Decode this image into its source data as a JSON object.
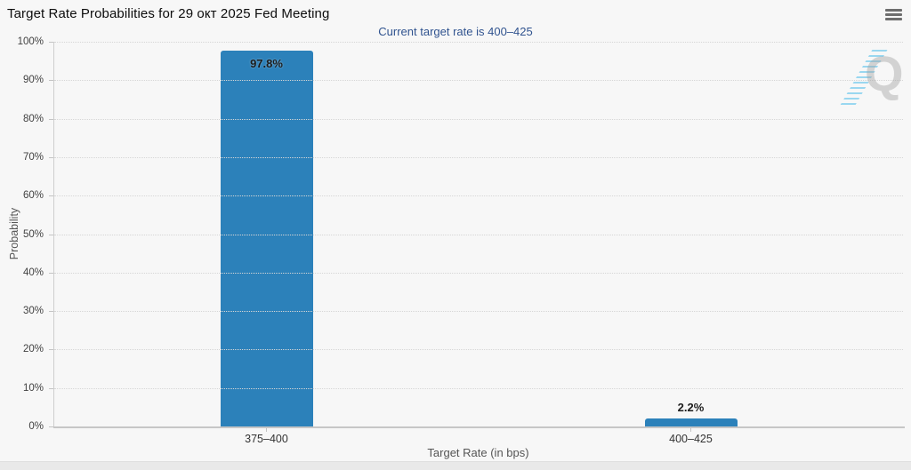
{
  "chart_data": {
    "type": "bar",
    "title": "Target Rate Probabilities for 29 окт 2025 Fed Meeting",
    "subtitle": "Current target rate is 400–425",
    "categories": [
      "375–400",
      "400–425"
    ],
    "values": [
      97.8,
      2.2
    ],
    "value_labels": [
      "97.8%",
      "2.2%"
    ],
    "xlabel": "Target Rate (in bps)",
    "ylabel": "Probability",
    "ylim": [
      0,
      100
    ],
    "ytick_step": 10,
    "ytick_labels": [
      "0%",
      "10%",
      "20%",
      "30%",
      "40%",
      "50%",
      "60%",
      "70%",
      "80%",
      "90%",
      "100%"
    ],
    "grid": "horizontal-dotted",
    "legend": "none",
    "bar_color": "#2c81ba"
  },
  "watermark": {
    "letter": "Q"
  },
  "colors": {
    "background": "#f7f7f7",
    "bar": "#2c81ba",
    "subtitle_text": "#30538f",
    "title_text": "#0d0d0d",
    "axis_text": "#424242",
    "axis_title_text": "#555555"
  }
}
